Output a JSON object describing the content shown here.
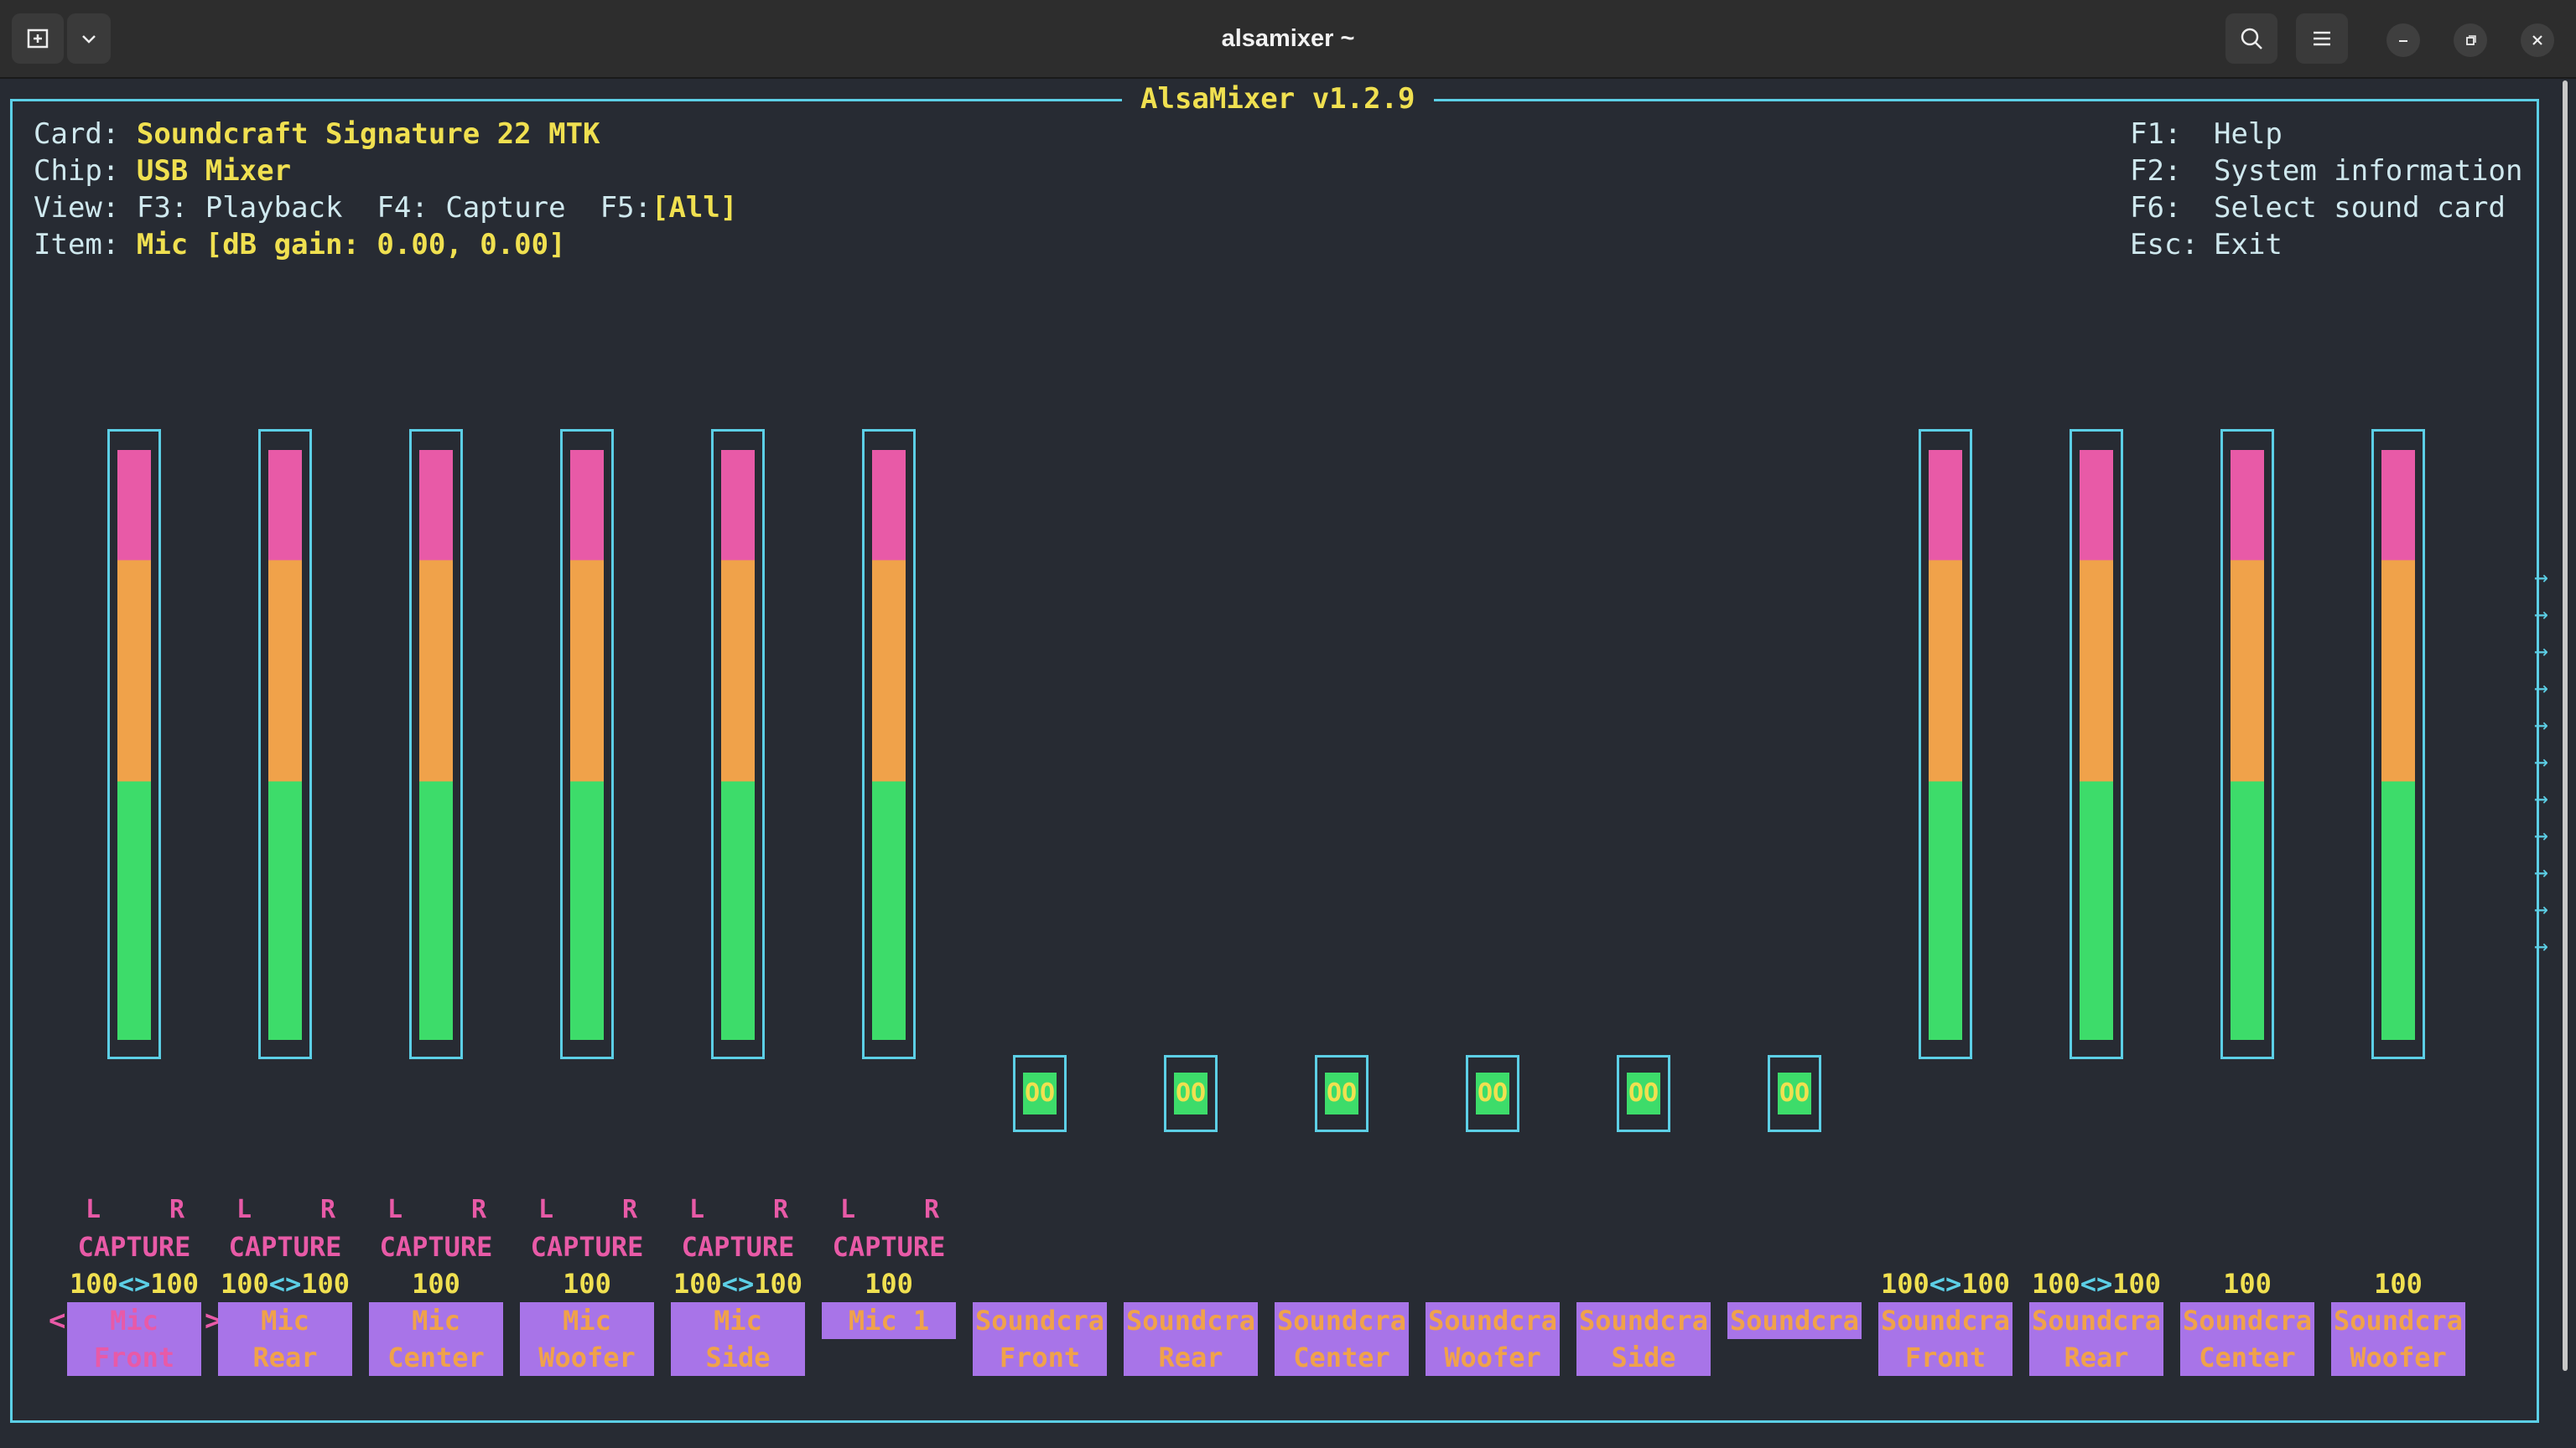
{
  "window": {
    "title": "alsamixer ~"
  },
  "mixer": {
    "title": "AlsaMixer v1.2.9",
    "card_label": "Card:",
    "card_value": "Soundcraft Signature 22 MTK",
    "chip_label": "Chip:",
    "chip_value": "USB Mixer",
    "view_label": "View:",
    "view_f3": "F3: Playback",
    "view_f4": "F4: Capture",
    "view_f5_key": "F5:",
    "view_f5_value": "[All]",
    "item_label": "Item:",
    "item_value": "Mic [dB gain: 0.00, 0.00]",
    "help": [
      {
        "key": "F1:",
        "text": "Help"
      },
      {
        "key": "F2:",
        "text": "System information"
      },
      {
        "key": "F6:",
        "text": "Select sound card"
      },
      {
        "key": "Esc:",
        "text": "Exit"
      }
    ]
  },
  "channels": [
    {
      "line1": "Mic",
      "line2": "Front",
      "l": "L",
      "r": "R",
      "capture": "CAPTURE",
      "vol_left": "100",
      "vol_sep": "<>",
      "vol_right": "100",
      "level": 1.0
    },
    {
      "line1": "Mic",
      "line2": "Rear",
      "l": "L",
      "r": "R",
      "capture": "CAPTURE",
      "vol_left": "100",
      "vol_sep": "<>",
      "vol_right": "100",
      "level": 1.0
    },
    {
      "line1": "Mic",
      "line2": "Center",
      "l": "L",
      "r": "R",
      "capture": "CAPTURE",
      "vol_left": "100",
      "level": 1.0
    },
    {
      "line1": "Mic",
      "line2": "Woofer",
      "l": "L",
      "r": "R",
      "capture": "CAPTURE",
      "vol_left": "100",
      "level": 1.0
    },
    {
      "line1": "Mic",
      "line2": "Side",
      "l": "L",
      "r": "R",
      "capture": "CAPTURE",
      "vol_left": "100",
      "vol_sep": "<>",
      "vol_right": "100",
      "level": 1.0
    },
    {
      "line1": "Mic 1",
      "line2": "",
      "l": "L",
      "r": "R",
      "capture": "CAPTURE",
      "vol_left": "100",
      "level": 1.0
    },
    {
      "line1": "Soundcra",
      "line2": "Front",
      "switch": "OO"
    },
    {
      "line1": "Soundcra",
      "line2": "Rear",
      "switch": "OO"
    },
    {
      "line1": "Soundcra",
      "line2": "Center",
      "switch": "OO"
    },
    {
      "line1": "Soundcra",
      "line2": "Woofer",
      "switch": "OO"
    },
    {
      "line1": "Soundcra",
      "line2": "Side",
      "switch": "OO"
    },
    {
      "line1": "Soundcra",
      "line2": "",
      "switch": "OO"
    },
    {
      "line1": "Soundcra",
      "line2": "Front",
      "vol_left": "100",
      "vol_sep": "<>",
      "vol_right": "100",
      "level": 1.0
    },
    {
      "line1": "Soundcra",
      "line2": "Rear",
      "vol_left": "100",
      "vol_sep": "<>",
      "vol_right": "100",
      "level": 1.0
    },
    {
      "line1": "Soundcra",
      "line2": "Center",
      "vol_left": "100",
      "level": 1.0
    },
    {
      "line1": "Soundcra",
      "line2": "Woofer",
      "vol_left": "100",
      "level": 1.0
    }
  ],
  "selected_channel": 0,
  "nav": {
    "left": "<",
    "right": ">"
  },
  "overflow_arrow": "→",
  "colors": {
    "frame": "#5ccfe6",
    "highlight": "#f0e050",
    "high": "#e85aa7",
    "mid": "#f0a24a",
    "low": "#3ddc6a",
    "label_bg": "#a874e8"
  }
}
